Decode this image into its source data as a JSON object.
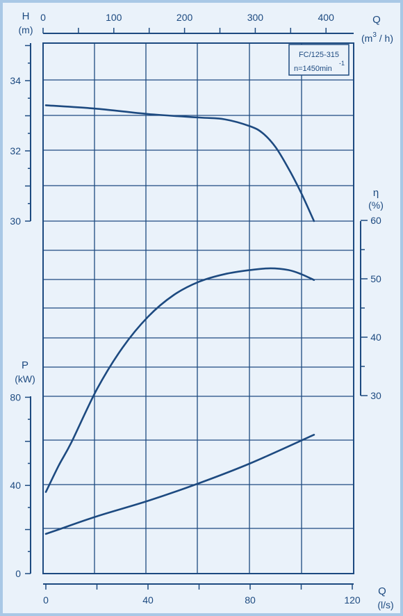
{
  "colors": {
    "background": "#eaf2fa",
    "ink": "#1d4a80",
    "border": "#a9c8e6"
  },
  "chart_data": {
    "type": "line",
    "legend": {
      "model": "FC/125-315",
      "speed": "n=1450min",
      "speed_exp": "-1"
    },
    "axes": {
      "q_m3h": {
        "label": "Q",
        "unit": "(m3/h)",
        "range": [
          0,
          450
        ],
        "ticks": [
          0,
          100,
          200,
          300,
          400
        ],
        "tick_labels": [
          "0",
          "100",
          "200",
          "300",
          "400"
        ]
      },
      "q_ls": {
        "label": "Q",
        "unit": "(l/s)",
        "range": [
          0,
          120
        ],
        "ticks": [
          0,
          40,
          80,
          120
        ],
        "tick_labels": [
          "0",
          "40",
          "80",
          "120"
        ]
      },
      "head": {
        "label": "H",
        "unit": "(m)",
        "range": [
          30,
          35
        ],
        "ticks": [
          30,
          32,
          34
        ],
        "tick_labels": [
          "30",
          "32",
          "34"
        ]
      },
      "efficiency": {
        "label": "η",
        "unit": "(%)",
        "range": [
          30,
          60
        ],
        "ticks": [
          30,
          40,
          50,
          60
        ],
        "tick_labels": [
          "30",
          "40",
          "50",
          "60"
        ]
      },
      "power": {
        "label": "P",
        "unit": "(kW)",
        "range": [
          0,
          80
        ],
        "ticks": [
          0,
          40,
          80
        ],
        "tick_labels": [
          "0",
          "40",
          "80"
        ]
      }
    },
    "grid": true,
    "series": [
      {
        "axis": "head",
        "x_unit": "l/s",
        "x": [
          0,
          20,
          40,
          60,
          70,
          80,
          85,
          90,
          95,
          100,
          105
        ],
        "y": [
          33.3,
          33.2,
          33.05,
          32.95,
          32.9,
          32.7,
          32.5,
          32.1,
          31.5,
          30.8,
          30.0
        ]
      },
      {
        "axis": "efficiency",
        "x_unit": "l/s",
        "x": [
          0,
          5,
          10,
          20,
          30,
          40,
          50,
          60,
          70,
          80,
          88,
          95,
          100,
          105
        ],
        "y": [
          13.5,
          18,
          22,
          31.1,
          38.2,
          43.5,
          47.2,
          49.5,
          50.8,
          51.5,
          51.8,
          51.5,
          50.8,
          49.8
        ]
      },
      {
        "axis": "power",
        "x_unit": "l/s",
        "x": [
          0,
          5,
          20,
          40,
          60,
          80,
          105
        ],
        "y": [
          18,
          20,
          26,
          33,
          41,
          50,
          63
        ]
      }
    ]
  }
}
